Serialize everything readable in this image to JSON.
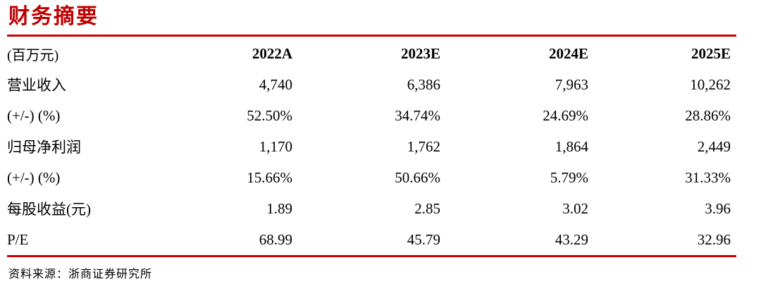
{
  "colors": {
    "title": "#C00000",
    "rule": "#D00000",
    "text": "#000000"
  },
  "page": {
    "title": "财务摘要",
    "source": "资料来源：浙商证券研究所"
  },
  "table": {
    "unit_header": "(百万元)",
    "columns": [
      "2022A",
      "2023E",
      "2024E",
      "2025E"
    ],
    "rows": [
      {
        "label": "营业收入",
        "values": [
          "4,740",
          "6,386",
          "7,963",
          "10,262"
        ]
      },
      {
        "label": "(+/-) (%)",
        "values": [
          "52.50%",
          "34.74%",
          "24.69%",
          "28.86%"
        ]
      },
      {
        "label": "归母净利润",
        "values": [
          "1,170",
          "1,762",
          "1,864",
          "2,449"
        ]
      },
      {
        "label": "(+/-) (%)",
        "values": [
          "15.66%",
          "50.66%",
          "5.79%",
          "31.33%"
        ]
      },
      {
        "label": "每股收益(元)",
        "values": [
          "1.89",
          "2.85",
          "3.02",
          "3.96"
        ]
      },
      {
        "label": "P/E",
        "values": [
          "68.99",
          "45.79",
          "43.29",
          "32.96"
        ]
      }
    ]
  }
}
